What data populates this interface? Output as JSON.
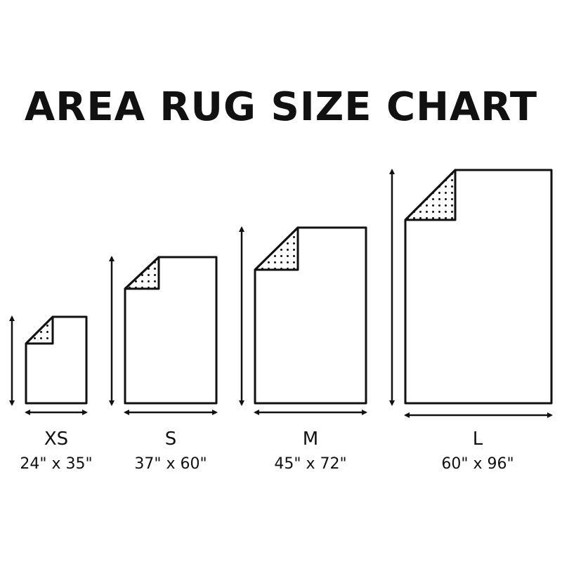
{
  "title": "AREA RUG SIZE CHART",
  "sizes": [
    {
      "label": "XS",
      "dims": "24\" x 35\""
    },
    {
      "label": "S",
      "dims": "37\" x 60\""
    },
    {
      "label": "M",
      "dims": "45\" x 72\""
    },
    {
      "label": "L",
      "dims": "60\" x 96\""
    }
  ]
}
